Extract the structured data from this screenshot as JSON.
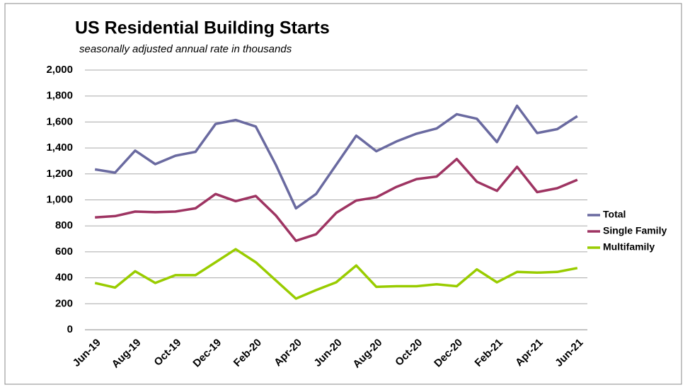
{
  "chart_data": {
    "type": "line",
    "title": "US Residential Building Starts",
    "subtitle": "seasonally adjusted annual rate in thousands",
    "categories": [
      "Jun-19",
      null,
      "Aug-19",
      null,
      "Oct-19",
      null,
      "Dec-19",
      null,
      "Feb-20",
      null,
      "Apr-20",
      null,
      "Jun-20",
      null,
      "Aug-20",
      null,
      "Oct-20",
      null,
      "Dec-20",
      null,
      "Feb-21",
      null,
      "Apr-21",
      null,
      "Jun-21"
    ],
    "series": [
      {
        "name": "Total",
        "color": "#6a6aa0",
        "values": [
          1235,
          1210,
          1380,
          1275,
          1340,
          1370,
          1585,
          1615,
          1565,
          1270,
          935,
          1045,
          1270,
          1495,
          1375,
          1450,
          1510,
          1550,
          1660,
          1625,
          1445,
          1725,
          1515,
          1545,
          1645
        ]
      },
      {
        "name": "Single Family",
        "color": "#9e3462",
        "values": [
          865,
          875,
          910,
          905,
          910,
          935,
          1045,
          990,
          1030,
          880,
          685,
          735,
          900,
          995,
          1020,
          1100,
          1160,
          1180,
          1315,
          1140,
          1070,
          1255,
          1060,
          1090,
          1155
        ]
      },
      {
        "name": "Multifamily",
        "color": "#99cc00",
        "values": [
          360,
          325,
          450,
          360,
          420,
          420,
          520,
          620,
          520,
          380,
          240,
          305,
          365,
          495,
          330,
          335,
          335,
          350,
          335,
          465,
          365,
          445,
          440,
          445,
          475
        ]
      }
    ],
    "ylim": [
      0,
      2000
    ],
    "yticks": [
      0,
      200,
      400,
      600,
      800,
      {
        "value": 1000,
        "label": "1,000"
      },
      {
        "value": 1200,
        "label": "1,200"
      },
      {
        "value": 1400,
        "label": "1,400"
      },
      {
        "value": 1600,
        "label": "1,600"
      },
      {
        "value": 1800,
        "label": "1,800"
      },
      {
        "value": 2000,
        "label": "2,000"
      }
    ],
    "grid": true,
    "legend": "right"
  }
}
